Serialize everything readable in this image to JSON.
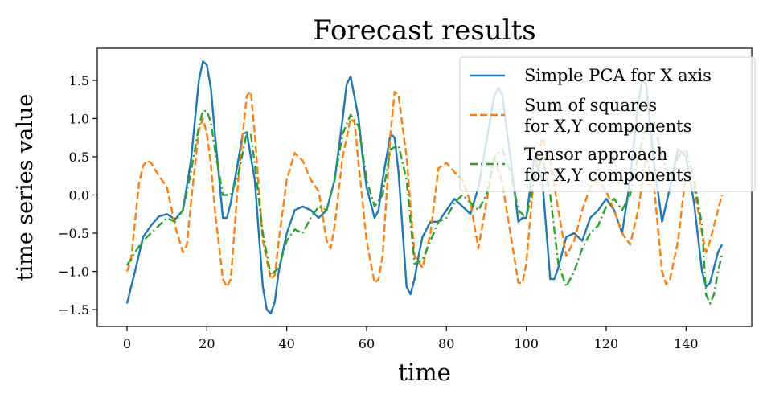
{
  "chart_data": {
    "type": "line",
    "title": "Forecast results",
    "xlabel": "time",
    "ylabel": "time series value",
    "xlim": [
      -7.45,
      156.45
    ],
    "ylim": [
      -1.72,
      1.92
    ],
    "xticks": [
      0,
      20,
      40,
      60,
      80,
      100,
      120,
      140
    ],
    "yticks": [
      -1.5,
      -1.0,
      -0.5,
      0.0,
      0.5,
      1.0,
      1.5
    ],
    "xtick_labels": [
      "0",
      "20",
      "40",
      "60",
      "80",
      "100",
      "120",
      "140"
    ],
    "ytick_labels": [
      "−1.5",
      "−1.0",
      "−0.5",
      "0.0",
      "0.5",
      "1.0",
      "1.5"
    ],
    "grid": false,
    "legend_position": "upper right",
    "series": [
      {
        "name": "Simple PCA for X axis",
        "color": "#1f77b4",
        "dash": "solid",
        "x": [
          0,
          2,
          4,
          6,
          8,
          10,
          12,
          14,
          16,
          18,
          19,
          20,
          21,
          22,
          24,
          25,
          26,
          28,
          29,
          30,
          31,
          32,
          34,
          35,
          36,
          37,
          38,
          40,
          42,
          44,
          46,
          48,
          50,
          52,
          54,
          55,
          56,
          58,
          59,
          60,
          62,
          63,
          64,
          66,
          67,
          68,
          70,
          71,
          72,
          73,
          74,
          76,
          78,
          80,
          82,
          84,
          86,
          88,
          90,
          92,
          93,
          94,
          96,
          98,
          99,
          100,
          102,
          104,
          106,
          107,
          108,
          110,
          112,
          114,
          116,
          118,
          120,
          122,
          124,
          126,
          128,
          129,
          130,
          132,
          134,
          136,
          138,
          140,
          142,
          144,
          145,
          146,
          148,
          149
        ],
        "y": [
          -1.42,
          -1.0,
          -0.55,
          -0.4,
          -0.28,
          -0.25,
          -0.32,
          -0.2,
          0.45,
          1.5,
          1.75,
          1.7,
          1.4,
          0.8,
          -0.3,
          -0.3,
          -0.1,
          0.5,
          0.8,
          0.82,
          0.5,
          0.2,
          -1.2,
          -1.5,
          -1.55,
          -1.4,
          -1.0,
          -0.5,
          -0.2,
          -0.15,
          -0.2,
          -0.3,
          -0.2,
          0.2,
          1.0,
          1.45,
          1.55,
          1.0,
          0.5,
          0.1,
          -0.3,
          -0.2,
          0.2,
          0.8,
          0.75,
          0.3,
          -1.2,
          -1.3,
          -1.1,
          -0.8,
          -0.55,
          -0.35,
          -0.35,
          -0.2,
          -0.05,
          -0.15,
          -0.25,
          0.1,
          0.7,
          1.3,
          1.4,
          1.3,
          0.5,
          -0.35,
          -0.3,
          -0.3,
          0.5,
          0.2,
          -1.1,
          -1.1,
          -0.95,
          -0.55,
          -0.5,
          -0.6,
          -0.3,
          -0.2,
          -0.05,
          -0.2,
          -0.5,
          0.2,
          1.2,
          1.5,
          1.45,
          0.4,
          -0.35,
          0.1,
          0.6,
          0.5,
          -0.1,
          -1.0,
          -1.2,
          -1.15,
          -0.75,
          -0.65
        ]
      },
      {
        "name": "Sum of squares\nfor X,Y components",
        "color": "#ff7f0e",
        "dash": "dashed",
        "x": [
          0,
          1,
          2,
          3,
          4,
          5,
          6,
          8,
          10,
          12,
          14,
          15,
          16,
          18,
          19,
          20,
          21,
          22,
          24,
          25,
          26,
          28,
          30,
          31,
          32,
          34,
          36,
          37,
          38,
          40,
          42,
          44,
          46,
          48,
          50,
          51,
          52,
          54,
          56,
          57,
          58,
          60,
          62,
          63,
          64,
          66,
          67,
          68,
          70,
          72,
          74,
          76,
          78,
          80,
          82,
          84,
          86,
          88,
          90,
          92,
          94,
          96,
          98,
          99,
          100,
          102,
          104,
          106,
          108,
          110,
          112,
          114,
          116,
          118,
          120,
          122,
          124,
          126,
          128,
          130,
          132,
          134,
          135,
          136,
          138,
          140,
          142,
          144,
          145,
          146,
          148,
          149
        ],
        "y": [
          -1.0,
          -0.85,
          -0.35,
          0.15,
          0.38,
          0.45,
          0.42,
          0.25,
          0.1,
          -0.4,
          -0.75,
          -0.65,
          -0.1,
          0.85,
          1.0,
          0.8,
          0.4,
          -0.2,
          -1.1,
          -1.2,
          -1.1,
          0.3,
          1.3,
          1.35,
          0.8,
          -0.6,
          -1.1,
          -1.05,
          -0.6,
          0.2,
          0.55,
          0.45,
          0.2,
          0.05,
          -0.6,
          -0.7,
          -0.4,
          0.5,
          1.0,
          0.95,
          0.4,
          -0.6,
          -1.15,
          -1.1,
          -0.8,
          0.8,
          1.35,
          1.3,
          0.5,
          -0.8,
          -0.95,
          -0.5,
          0.35,
          0.42,
          0.3,
          0.2,
          -0.1,
          -0.7,
          -0.1,
          0.5,
          0.15,
          -0.5,
          -1.15,
          -1.15,
          -0.9,
          0.3,
          0.75,
          0.45,
          -0.2,
          -0.8,
          -0.6,
          -0.2,
          0.1,
          0.2,
          0.05,
          -0.2,
          -0.5,
          -0.65,
          -0.2,
          0.5,
          0.1,
          -1.0,
          -1.17,
          -1.1,
          -0.6,
          0.3,
          0.1,
          -0.5,
          -0.75,
          -0.6,
          -0.2,
          0.0
        ]
      },
      {
        "name": "Tensor approach\nfor X,Y components",
        "color": "#2ca02c",
        "dash": "dashdot",
        "x": [
          0,
          2,
          4,
          6,
          8,
          10,
          12,
          14,
          16,
          18,
          19,
          20,
          21,
          22,
          24,
          26,
          28,
          30,
          31,
          32,
          34,
          36,
          38,
          40,
          42,
          44,
          46,
          48,
          50,
          52,
          54,
          56,
          58,
          60,
          62,
          64,
          66,
          68,
          70,
          72,
          74,
          76,
          78,
          80,
          82,
          84,
          86,
          88,
          90,
          92,
          94,
          96,
          98,
          100,
          102,
          104,
          106,
          108,
          110,
          112,
          114,
          116,
          118,
          120,
          122,
          124,
          126,
          128,
          130,
          132,
          134,
          136,
          138,
          140,
          142,
          144,
          145,
          146,
          147,
          148,
          149
        ],
        "y": [
          -0.92,
          -0.75,
          -0.6,
          -0.5,
          -0.4,
          -0.3,
          -0.35,
          -0.2,
          0.3,
          0.9,
          1.1,
          1.1,
          0.95,
          0.6,
          0.0,
          0.0,
          0.3,
          0.82,
          0.8,
          0.4,
          -0.5,
          -1.05,
          -0.95,
          -0.6,
          -0.45,
          -0.5,
          -0.3,
          -0.15,
          -0.2,
          0.2,
          0.8,
          1.05,
          0.9,
          0.2,
          -0.15,
          0.0,
          0.6,
          0.65,
          0.2,
          -0.9,
          -0.85,
          -0.6,
          -0.35,
          -0.3,
          -0.1,
          0.0,
          -0.1,
          -0.2,
          0.0,
          0.5,
          0.6,
          0.3,
          -0.2,
          -0.3,
          0.2,
          0.5,
          0.0,
          -0.9,
          -1.2,
          -1.0,
          -0.7,
          -0.5,
          -0.4,
          -0.15,
          -0.05,
          -0.2,
          0.0,
          0.5,
          0.9,
          0.95,
          0.5,
          0.2,
          0.5,
          0.6,
          0.2,
          -0.4,
          -1.3,
          -1.42,
          -1.3,
          -1.0,
          -0.78
        ]
      }
    ]
  }
}
